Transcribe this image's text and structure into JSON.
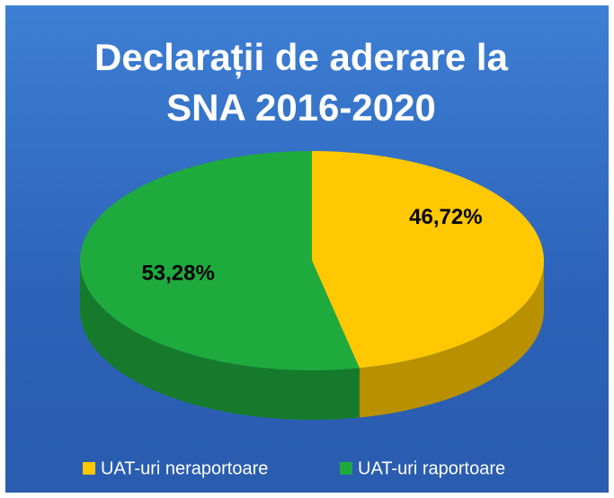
{
  "chart_data": {
    "type": "pie3d",
    "title": "Declarații de aderare la SNA 2016-2020",
    "categories": [
      "UAT-uri neraportoare",
      "UAT-uri raportoare"
    ],
    "values": [
      46.72,
      53.28
    ],
    "value_labels": [
      "46,72%",
      "53,28%"
    ],
    "colors": [
      "#ffc800",
      "#1faa3e"
    ],
    "legend": "bottom"
  }
}
